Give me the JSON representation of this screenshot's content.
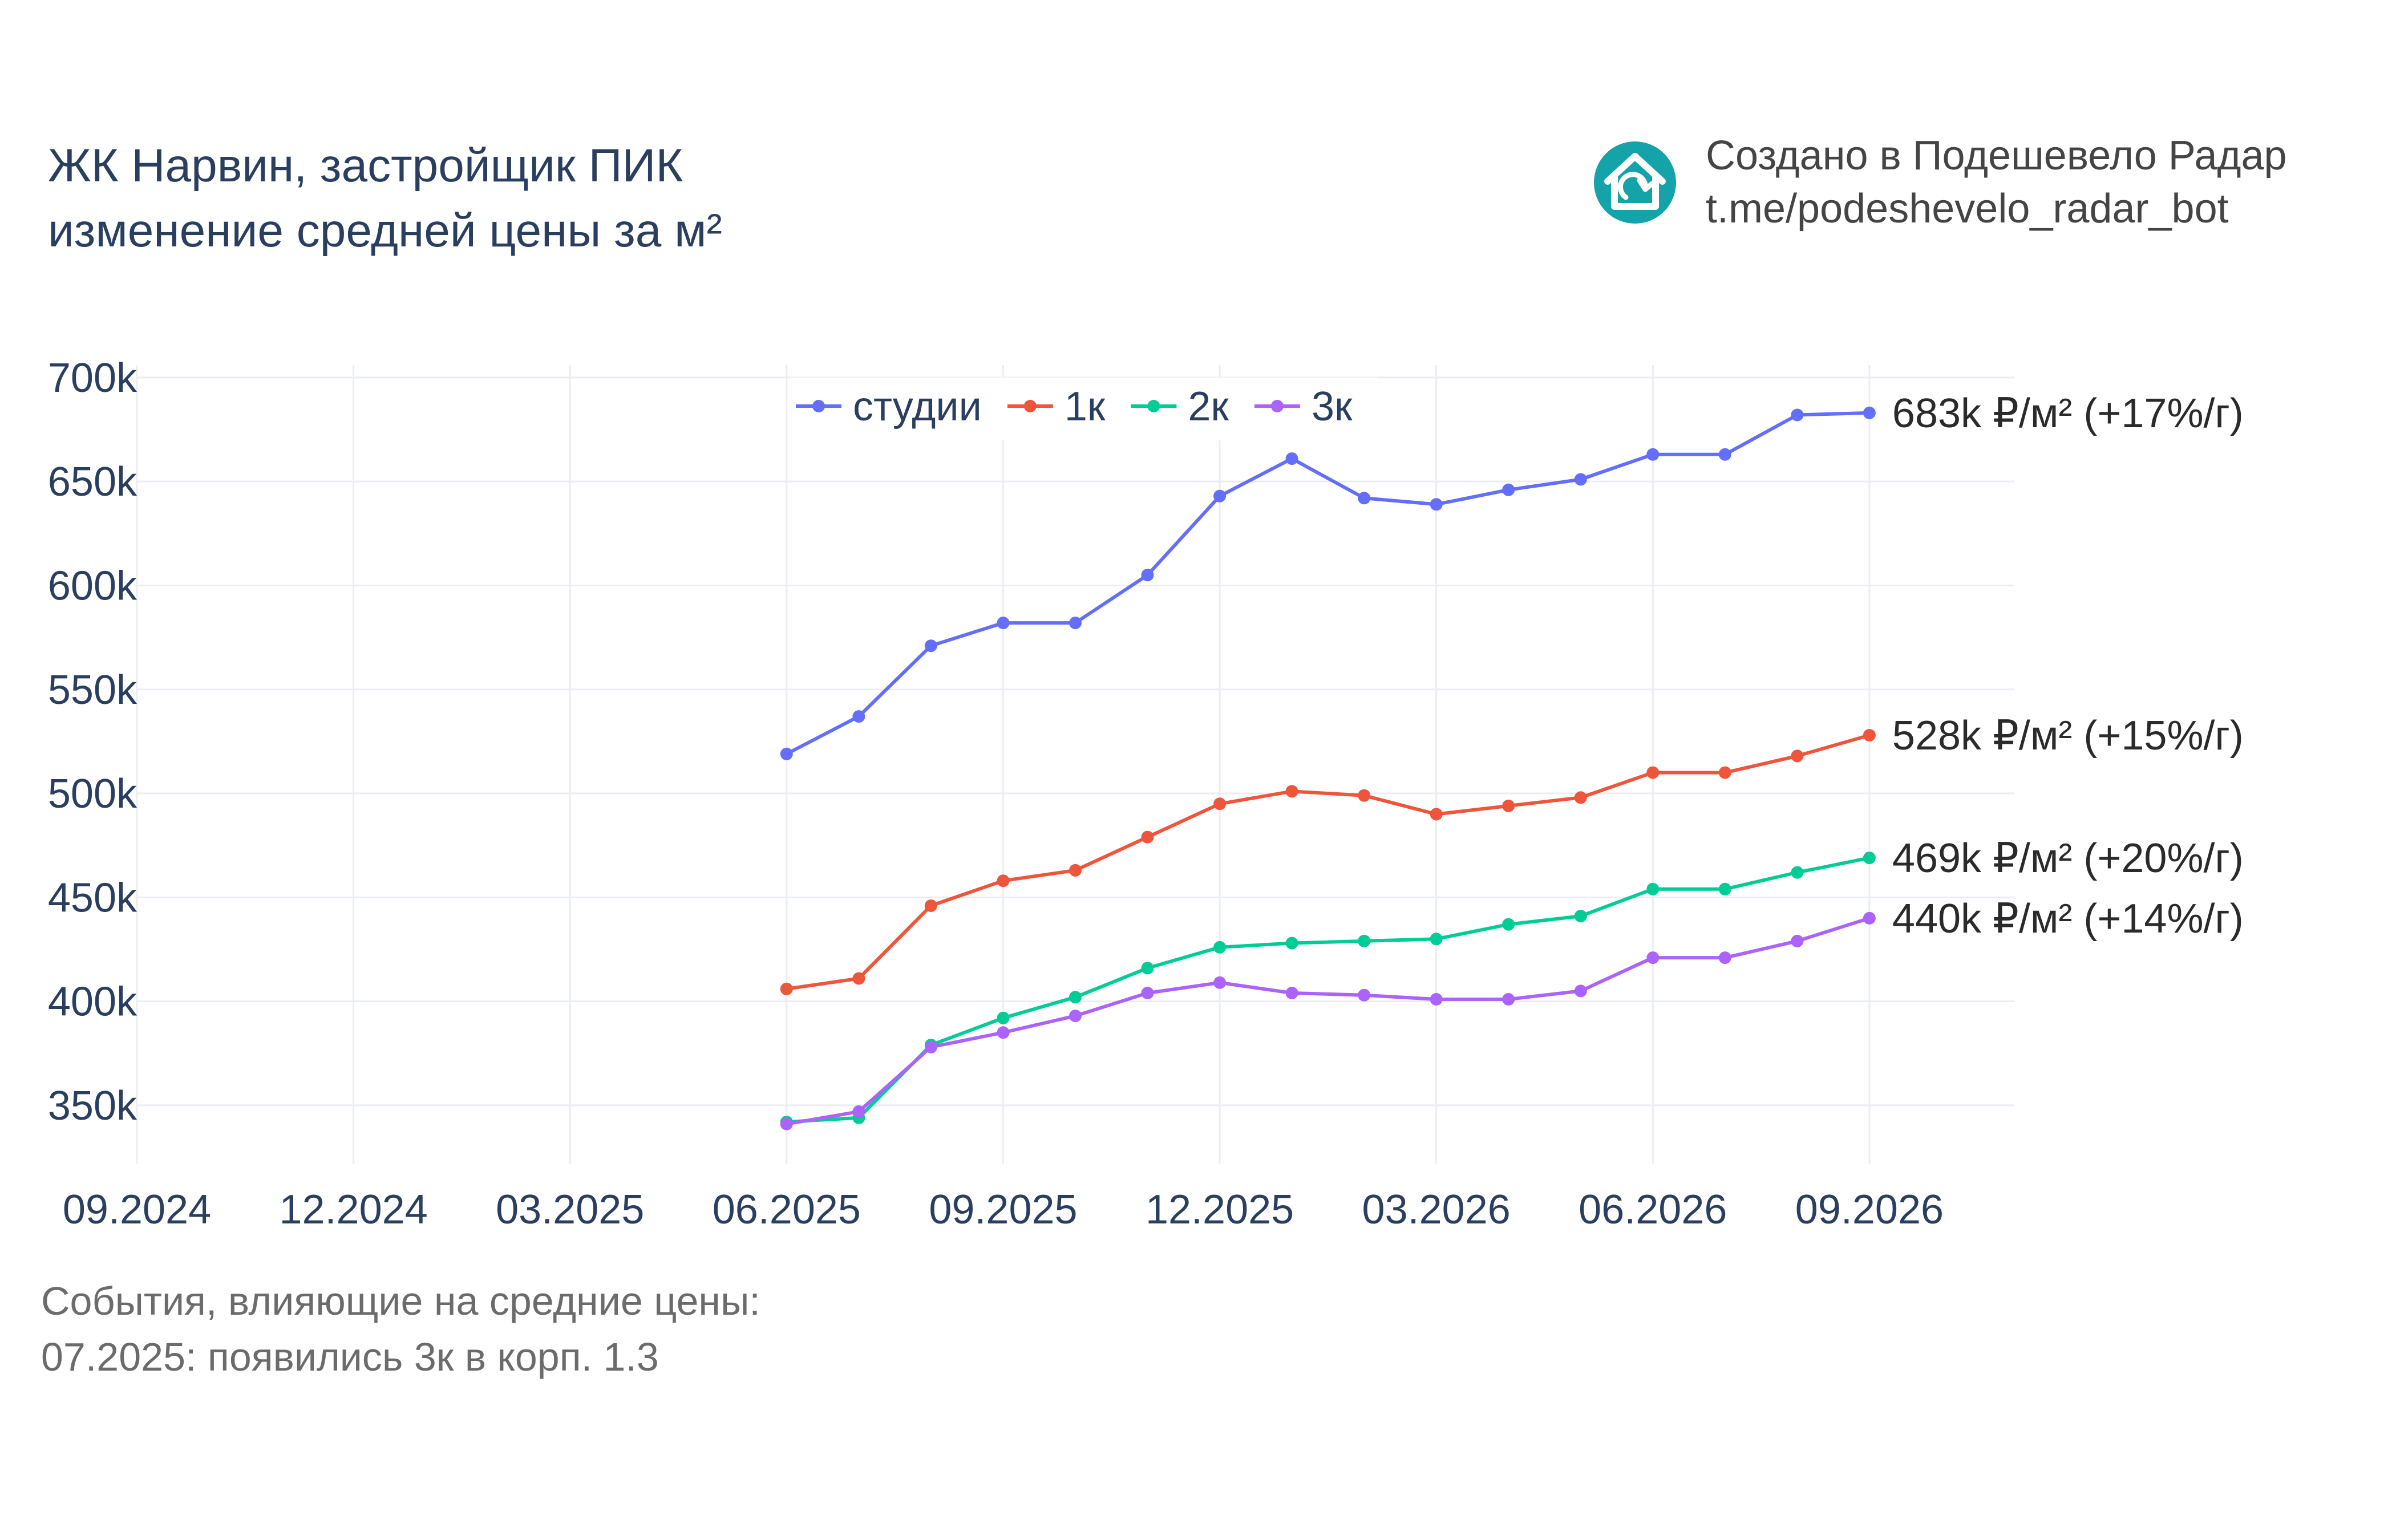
{
  "header": {
    "title_line1": "ЖК Нарвин, застройщик ПИК",
    "title_line2": "изменение средней цены за м²",
    "credit_line1": "Создано в Подешевело Радар",
    "credit_line2": "t.me/podeshevelo_radar_bot"
  },
  "events": {
    "heading": "События, влияющие на средние цены:",
    "items": [
      "07.2025: появились 3к в корп. 1.3"
    ]
  },
  "colors": {
    "grid": "#ebedf2",
    "logo": "#13a3a8"
  },
  "chart_data": {
    "type": "line",
    "x_tick_labels": [
      "09.2024",
      "12.2024",
      "03.2025",
      "06.2025",
      "09.2025",
      "12.2025",
      "03.2026",
      "06.2026",
      "09.2026"
    ],
    "y_tick_values": [
      350000,
      400000,
      450000,
      500000,
      550000,
      600000,
      650000,
      700000
    ],
    "y_tick_labels": [
      "350k",
      "400k",
      "450k",
      "500k",
      "550k",
      "600k",
      "650k",
      "700k"
    ],
    "xlim": [
      "09.2024",
      "11.2026"
    ],
    "ylim": [
      322000,
      706000
    ],
    "grid": true,
    "legend_position": "top",
    "x": [
      "06.2025",
      "07.2025",
      "08.2025",
      "09.2025",
      "10.2025",
      "11.2025",
      "12.2025",
      "01.2026",
      "02.2026",
      "03.2026",
      "04.2026",
      "05.2026",
      "06.2026",
      "07.2026",
      "08.2026",
      "09.2026"
    ],
    "series": [
      {
        "name": "студии",
        "color": "#636efa",
        "values": [
          519000,
          537000,
          571000,
          582000,
          582000,
          605000,
          643000,
          661000,
          642000,
          639000,
          646000,
          651000,
          663000,
          663000,
          682000,
          683000
        ],
        "end_label": "683k ₽/м² (+17%/г)"
      },
      {
        "name": "1к",
        "color": "#ef553b",
        "values": [
          406000,
          411000,
          446000,
          458000,
          463000,
          479000,
          495000,
          501000,
          499000,
          490000,
          494000,
          498000,
          510000,
          510000,
          518000,
          528000
        ],
        "end_label": "528k ₽/м² (+15%/г)"
      },
      {
        "name": "2к",
        "color": "#00cc96",
        "values": [
          342000,
          344000,
          379000,
          392000,
          402000,
          416000,
          426000,
          428000,
          429000,
          430000,
          437000,
          441000,
          454000,
          454000,
          462000,
          469000
        ],
        "end_label": "469k ₽/м² (+20%/г)"
      },
      {
        "name": "3к",
        "color": "#ab63fa",
        "values": [
          341000,
          347000,
          378000,
          385000,
          393000,
          404000,
          409000,
          404000,
          403000,
          401000,
          401000,
          405000,
          421000,
          421000,
          429000,
          440000
        ],
        "end_label": "440k ₽/м² (+14%/г)"
      }
    ]
  }
}
